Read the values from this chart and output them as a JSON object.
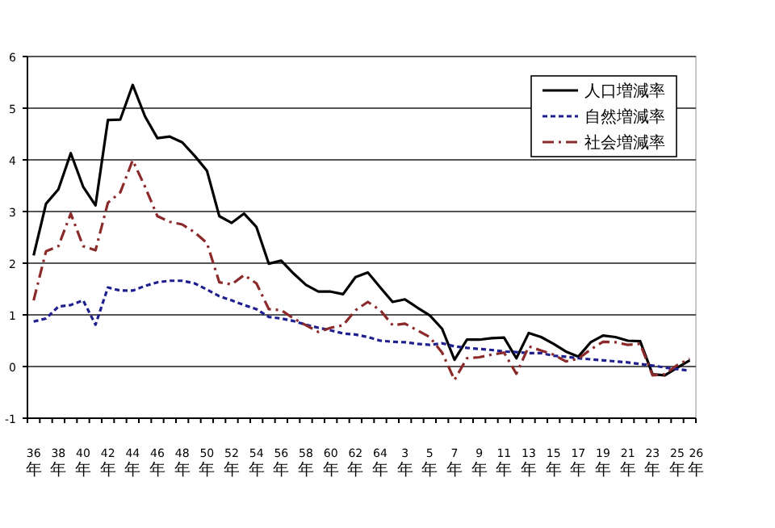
{
  "chart_data": {
    "type": "line",
    "categories": [
      "36年",
      null,
      "38年",
      null,
      "40年",
      null,
      "42年",
      null,
      "44年",
      null,
      "46年",
      null,
      "48年",
      null,
      "50年",
      null,
      "52年",
      null,
      "54年",
      null,
      "56年",
      null,
      "58年",
      null,
      "60年",
      null,
      "62年",
      null,
      "64年",
      null,
      "3年",
      null,
      "5年",
      null,
      "7年",
      null,
      "9年",
      null,
      "11年",
      null,
      "13年",
      null,
      "15年",
      null,
      "17年",
      null,
      "19年",
      null,
      "21年",
      null,
      "23年",
      null,
      "25年",
      "26年"
    ],
    "series": [
      {
        "name": "人口増減率",
        "color": "#000000",
        "line_style": "solid",
        "values": [
          2.15,
          3.15,
          3.43,
          4.13,
          3.48,
          3.12,
          4.77,
          4.78,
          5.45,
          4.84,
          4.42,
          4.45,
          4.34,
          4.08,
          3.79,
          2.91,
          2.78,
          2.96,
          2.7,
          1.99,
          2.05,
          1.8,
          1.58,
          1.45,
          1.45,
          1.4,
          1.73,
          1.82,
          1.53,
          1.25,
          1.3,
          1.14,
          0.99,
          0.73,
          0.13,
          0.52,
          0.52,
          0.55,
          0.56,
          0.16,
          0.65,
          0.57,
          0.44,
          0.29,
          0.19,
          0.47,
          0.6,
          0.57,
          0.5,
          0.49,
          -0.15,
          -0.17,
          -0.02,
          0.12
        ]
      },
      {
        "name": "自然増減率",
        "color": "#1f1f8f",
        "line_style": "dotted",
        "values": [
          0.87,
          0.93,
          1.16,
          1.19,
          1.28,
          0.81,
          1.53,
          1.47,
          1.47,
          1.56,
          1.63,
          1.66,
          1.66,
          1.61,
          1.49,
          1.36,
          1.28,
          1.19,
          1.11,
          0.96,
          0.93,
          0.88,
          0.81,
          0.75,
          0.7,
          0.64,
          0.62,
          0.57,
          0.5,
          0.48,
          0.47,
          0.44,
          0.42,
          0.45,
          0.39,
          0.36,
          0.34,
          0.32,
          0.29,
          0.28,
          0.26,
          0.26,
          0.21,
          0.19,
          0.16,
          0.14,
          0.12,
          0.1,
          0.08,
          0.05,
          0.02,
          -0.02,
          -0.05,
          -0.08
        ]
      },
      {
        "name": "社会増減率",
        "color": "#8b2a2a",
        "line_style": "dashed",
        "values": [
          1.28,
          2.23,
          2.33,
          2.96,
          2.33,
          2.25,
          3.17,
          3.37,
          3.99,
          3.48,
          2.91,
          2.8,
          2.75,
          2.6,
          2.39,
          1.63,
          1.59,
          1.77,
          1.61,
          1.11,
          1.09,
          0.93,
          0.8,
          0.67,
          0.75,
          0.8,
          1.09,
          1.25,
          1.09,
          0.8,
          0.83,
          0.7,
          0.57,
          0.27,
          -0.26,
          0.16,
          0.18,
          0.23,
          0.27,
          -0.14,
          0.39,
          0.31,
          0.23,
          0.1,
          0.15,
          0.33,
          0.48,
          0.47,
          0.42,
          0.44,
          -0.17,
          -0.15,
          0.03,
          0.15
        ]
      }
    ],
    "ylim": [
      -1,
      6
    ],
    "yticks": [
      -1,
      0,
      1,
      2,
      3,
      4,
      5,
      6
    ],
    "grid": "y",
    "legend": "top right"
  }
}
